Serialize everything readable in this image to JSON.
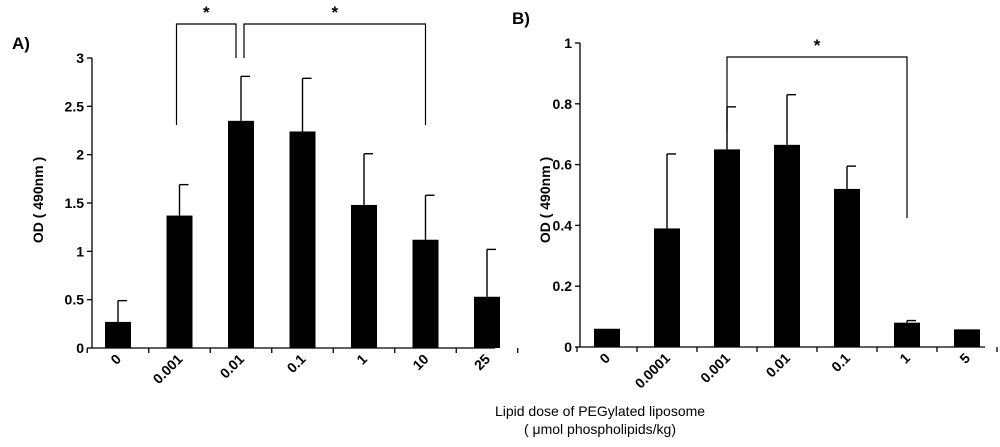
{
  "figure": {
    "xlabel_line1": "Lipid dose of PEGylated liposome",
    "xlabel_line2": "( μmol phospholipids/kg)"
  },
  "chart_data": [
    {
      "type": "bar",
      "panel_label": "A)",
      "ylabel": "OD ( 490nm )",
      "ylim": [
        0,
        3
      ],
      "yticks": [
        "0",
        "0.5",
        "1",
        "1.5",
        "2",
        "2.5",
        "3"
      ],
      "categories": [
        "0",
        "0.001",
        "0.01",
        "0.1",
        "1",
        "10",
        "25"
      ],
      "values": [
        0.27,
        1.37,
        2.35,
        2.24,
        1.48,
        1.12,
        0.53
      ],
      "errors": [
        0.22,
        0.32,
        0.46,
        0.55,
        0.53,
        0.46,
        0.49
      ],
      "significance": [
        {
          "from": 1,
          "to": 2,
          "label": "*"
        },
        {
          "from": 2,
          "to": 5,
          "label": "*"
        }
      ],
      "grid": false,
      "bar_color": "#000000"
    },
    {
      "type": "bar",
      "panel_label": "B)",
      "ylabel": "OD ( 490nm )",
      "ylim": [
        0,
        1
      ],
      "yticks": [
        "0",
        "0.2",
        "0.4",
        "0.6",
        "0.8",
        "1"
      ],
      "categories": [
        "0",
        "0.0001",
        "0.001",
        "0.01",
        "0.1",
        "1",
        "5"
      ],
      "values": [
        0.06,
        0.39,
        0.65,
        0.665,
        0.52,
        0.08,
        0.058
      ],
      "errors": [
        0,
        0.245,
        0.14,
        0.165,
        0.075,
        0.007,
        0
      ],
      "significance": [
        {
          "from": 2,
          "to": 5,
          "label": "*"
        }
      ],
      "grid": false,
      "bar_color": "#000000"
    }
  ]
}
